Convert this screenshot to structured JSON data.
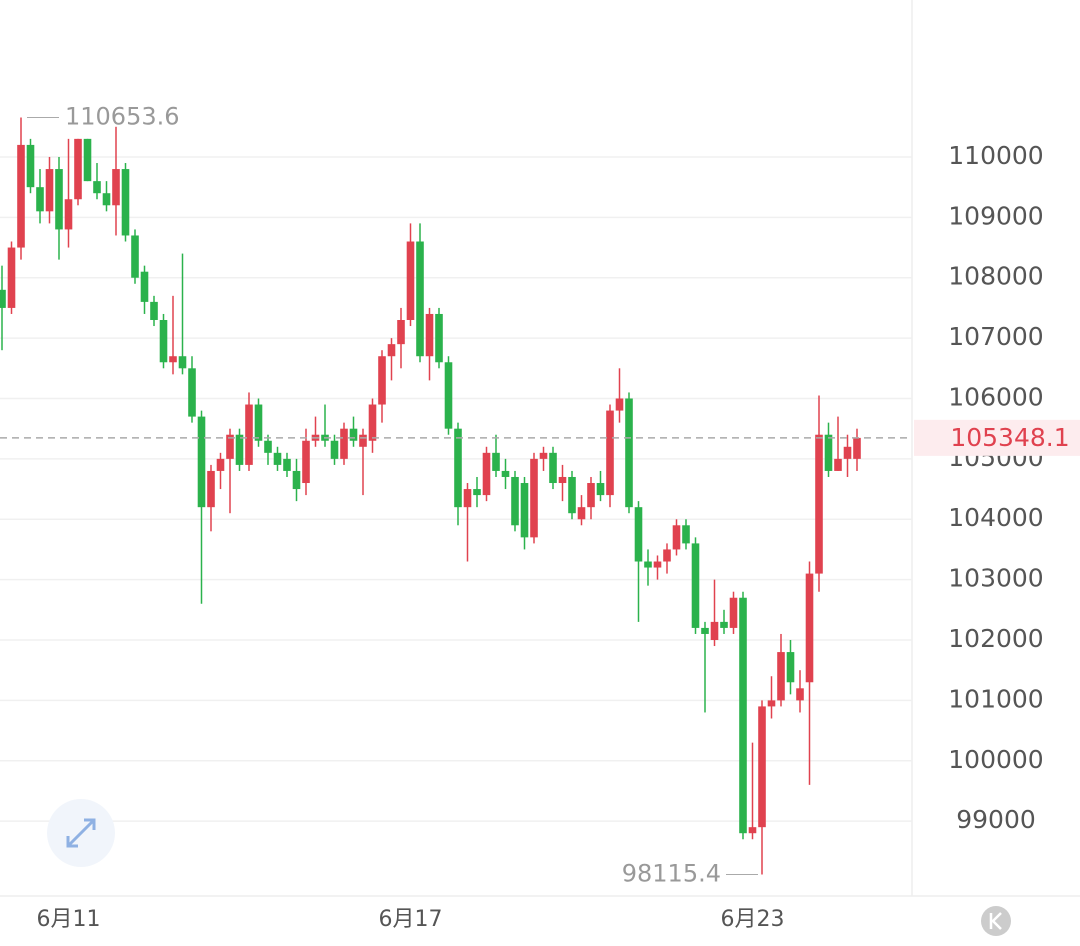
{
  "chart_data": {
    "type": "candlestick",
    "categories": [
      null,
      null,
      null,
      null,
      null,
      null,
      null,
      "6月11",
      null,
      null,
      null,
      null,
      null,
      null,
      null,
      null,
      null,
      null,
      null,
      null,
      null,
      null,
      null,
      null,
      null,
      null,
      null,
      null,
      null,
      null,
      null,
      null,
      null,
      null,
      null,
      null,
      null,
      null,
      null,
      null,
      null,
      null,
      null,
      "6月17",
      null,
      null,
      null,
      null,
      null,
      null,
      null,
      null,
      null,
      null,
      null,
      null,
      null,
      null,
      null,
      null,
      null,
      null,
      null,
      null,
      null,
      null,
      null,
      null,
      null,
      null,
      null,
      null,
      null,
      null,
      null,
      null,
      null,
      null,
      null,
      "6月23",
      null,
      null,
      null,
      null,
      null,
      null,
      null,
      null,
      null,
      null,
      null
    ],
    "open": [
      107800,
      107500,
      108500,
      110200,
      109500,
      109100,
      109800,
      108800,
      109300,
      110300,
      109600,
      109400,
      109200,
      109800,
      108700,
      108100,
      107600,
      107300,
      106600,
      106700,
      106500,
      105700,
      104200,
      104800,
      105000,
      105400,
      104900,
      105900,
      105300,
      105100,
      105000,
      104800,
      104600,
      105300,
      105400,
      105300,
      105000,
      105500,
      105200,
      105300,
      105900,
      106700,
      106900,
      107300,
      108600,
      106700,
      107400,
      106600,
      105500,
      104200,
      104500,
      104400,
      105100,
      104800,
      104700,
      104600,
      103700,
      105000,
      105100,
      104600,
      104700,
      104000,
      104200,
      104600,
      104400,
      105800,
      106000,
      104200,
      103300,
      103200,
      103300,
      103500,
      103900,
      103600,
      102200,
      102000,
      102300,
      102200,
      102700,
      98800,
      98900,
      100900,
      101000,
      101800,
      101000,
      101300,
      103100,
      105400,
      104800,
      105000,
      105000
    ],
    "high": [
      108200,
      108600,
      110653.6,
      110300,
      109800,
      110000,
      110000,
      110300,
      110300,
      110300,
      109900,
      109600,
      110500,
      109900,
      108800,
      108200,
      107700,
      107400,
      107700,
      108400,
      106700,
      105800,
      104900,
      105100,
      105500,
      105500,
      106100,
      106000,
      105400,
      105200,
      105100,
      105000,
      105500,
      105700,
      105900,
      105400,
      105600,
      105700,
      105500,
      106000,
      106800,
      107000,
      107500,
      108900,
      108900,
      107500,
      107500,
      106700,
      105600,
      104600,
      104700,
      105200,
      105400,
      105000,
      104800,
      104700,
      105100,
      105200,
      105200,
      104900,
      104800,
      104400,
      104700,
      104800,
      105900,
      106500,
      106100,
      104300,
      103500,
      103400,
      103600,
      104000,
      104000,
      103700,
      102300,
      103000,
      102500,
      102800,
      102800,
      100300,
      101000,
      101400,
      102100,
      102000,
      101500,
      103300,
      106050,
      105600,
      105700,
      105400,
      105500
    ],
    "low": [
      106800,
      107400,
      108300,
      109400,
      108900,
      108900,
      108300,
      108500,
      109200,
      109600,
      109300,
      109100,
      108700,
      108600,
      107900,
      107400,
      107200,
      106500,
      106400,
      106400,
      105600,
      102600,
      103800,
      104500,
      104100,
      104800,
      104800,
      105200,
      104900,
      104800,
      104700,
      104300,
      104400,
      105200,
      105200,
      104900,
      104900,
      105200,
      104400,
      105100,
      105600,
      106300,
      106500,
      107200,
      106600,
      106300,
      106500,
      105400,
      103900,
      103300,
      104200,
      104300,
      104700,
      104500,
      103800,
      103500,
      103600,
      104800,
      104500,
      104300,
      104000,
      103900,
      104000,
      104300,
      104200,
      105600,
      104100,
      102300,
      102900,
      103000,
      103100,
      103400,
      103500,
      102100,
      100800,
      101900,
      102100,
      102100,
      98700,
      98700,
      98115.4,
      100700,
      100900,
      101100,
      100800,
      99600,
      102800,
      104700,
      104800,
      104700,
      104800
    ],
    "close": [
      107500,
      108500,
      110200,
      109500,
      109100,
      109800,
      108800,
      109300,
      110300,
      109600,
      109400,
      109200,
      109800,
      108700,
      108000,
      107600,
      107300,
      106600,
      106700,
      106500,
      105700,
      104200,
      104800,
      105000,
      105400,
      104900,
      105900,
      105300,
      105100,
      104900,
      104800,
      104500,
      105300,
      105400,
      105300,
      105000,
      105500,
      105300,
      105400,
      105900,
      106700,
      106900,
      107300,
      108600,
      106700,
      107400,
      106600,
      105500,
      104200,
      104500,
      104400,
      105100,
      104800,
      104700,
      103900,
      103700,
      105000,
      105100,
      104600,
      104700,
      104100,
      104200,
      104600,
      104400,
      105800,
      106000,
      104200,
      103300,
      103200,
      103300,
      103500,
      103900,
      103600,
      102200,
      102100,
      102300,
      102200,
      102700,
      98800,
      98900,
      100900,
      101000,
      101800,
      101300,
      101200,
      103100,
      105400,
      104800,
      105000,
      105200,
      105348.1
    ],
    "up_color": "#e0424f",
    "down_color": "#2bb24c",
    "ylim": [
      97760,
      112600
    ],
    "yticks": [
      99000,
      100000,
      101000,
      102000,
      103000,
      104000,
      105000,
      106000,
      107000,
      108000,
      109000,
      110000
    ],
    "grid": true
  }
}
